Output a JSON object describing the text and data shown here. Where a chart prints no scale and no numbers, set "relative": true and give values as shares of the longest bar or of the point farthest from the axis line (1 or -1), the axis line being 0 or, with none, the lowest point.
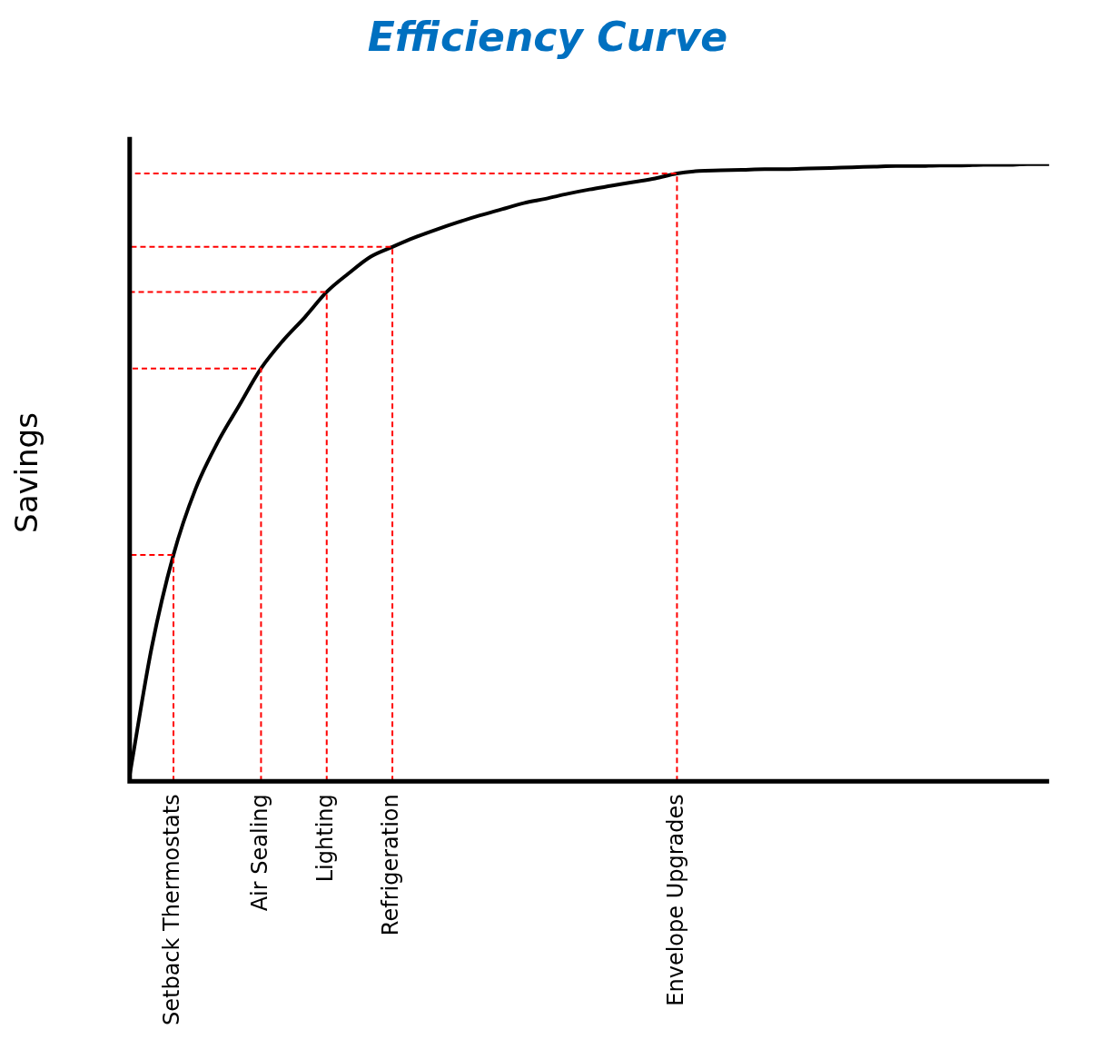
{
  "chart_data": {
    "type": "line",
    "title": "Efficiency Curve",
    "ylabel": "Savings",
    "relative": true,
    "grid": false,
    "legend": false,
    "marker": "none",
    "line_style": "solid",
    "categories": [
      null,
      null,
      "Setback Thermostats",
      null,
      null,
      null,
      "Air Sealing",
      null,
      null,
      "Lighting",
      null,
      null,
      "Refrigeration",
      null,
      null,
      null,
      null,
      null,
      null,
      null,
      null,
      null,
      null,
      null,
      null,
      "Envelope Upgrades",
      null,
      null,
      null,
      null,
      null,
      null,
      null,
      null,
      null,
      null,
      null,
      null,
      null,
      null,
      null,
      null,
      null
    ],
    "series": [
      {
        "color": "#000000",
        "values": [
          0.01,
          0.216,
          0.367,
          0.473,
          0.548,
          0.609,
          0.669,
          0.714,
          0.752,
          0.793,
          0.823,
          0.85,
          0.866,
          0.881,
          0.894,
          0.906,
          0.917,
          0.927,
          0.937,
          0.944,
          0.952,
          0.959,
          0.965,
          0.971,
          0.977,
          0.985,
          0.989,
          0.99,
          0.991,
          0.992,
          0.992,
          0.993,
          0.994,
          0.995,
          0.996,
          0.997,
          0.997,
          0.998,
          0.998,
          0.999,
          0.999,
          1,
          1
        ]
      }
    ],
    "ref_lines": [
      {
        "axis": "x",
        "value": "Setback Thermostats",
        "color": "#ff0000",
        "line_style": "dashed"
      },
      {
        "axis": "x",
        "value": "Air Sealing",
        "color": "#ff0000",
        "line_style": "dashed"
      },
      {
        "axis": "x",
        "value": "Lighting",
        "color": "#ff0000",
        "line_style": "dashed"
      },
      {
        "axis": "x",
        "value": "Refrigeration",
        "color": "#ff0000",
        "line_style": "dashed"
      },
      {
        "axis": "x",
        "value": "Envelope Upgrades",
        "color": "#ff0000",
        "line_style": "dashed"
      }
    ]
  }
}
